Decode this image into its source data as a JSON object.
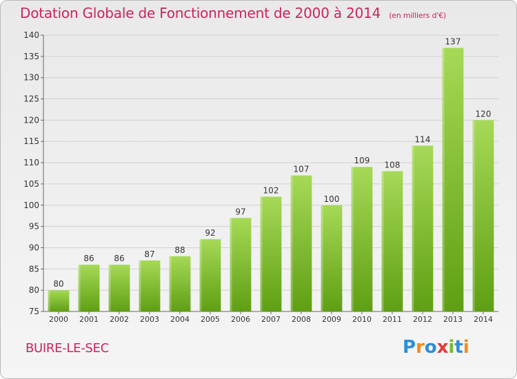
{
  "title": "Dotation Globale de Fonctionnement de 2000 à 2014",
  "subtitle": "(en milliers d'€)",
  "commune": "BUIRE-LE-SEC",
  "logo": {
    "text": "Proxiti",
    "letters": [
      {
        "ch": "P",
        "color": "#2b8fd6"
      },
      {
        "ch": "r",
        "color": "#f28a1a"
      },
      {
        "ch": "o",
        "color": "#2b8fd6"
      },
      {
        "ch": "x",
        "color": "#e23a3a"
      },
      {
        "ch": "i",
        "color": "#7cb82f"
      },
      {
        "ch": "t",
        "color": "#2b8fd6"
      },
      {
        "ch": "i",
        "color": "#f28a1a"
      }
    ]
  },
  "colors": {
    "accent": "#c8265b",
    "bar_light": "#a6d957",
    "bar_dark": "#5f9f13",
    "grid": "#d0d0d0",
    "axis_text": "#333333"
  },
  "chart_data": {
    "type": "bar",
    "categories": [
      "2000",
      "2001",
      "2002",
      "2003",
      "2004",
      "2005",
      "2006",
      "2007",
      "2008",
      "2009",
      "2010",
      "2011",
      "2012",
      "2013",
      "2014"
    ],
    "values": [
      80,
      86,
      86,
      87,
      88,
      92,
      97,
      102,
      107,
      100,
      109,
      108,
      114,
      137,
      120
    ],
    "ylim": [
      75,
      140
    ],
    "yticks": [
      75,
      80,
      85,
      90,
      95,
      100,
      105,
      110,
      115,
      120,
      125,
      130,
      135,
      140
    ],
    "grid": true,
    "data_labels": true
  }
}
